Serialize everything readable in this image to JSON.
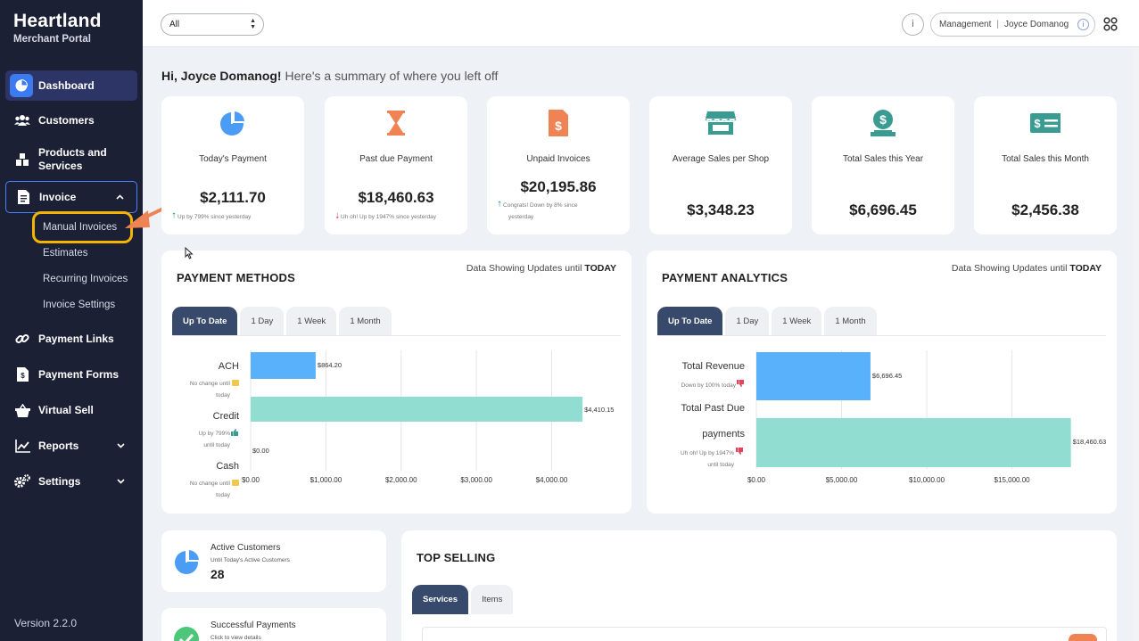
{
  "brand": {
    "name": "Heartland",
    "subtitle": "Merchant Portal"
  },
  "sidebar": {
    "items": [
      {
        "label": "Dashboard",
        "icon": "pie-chart-icon"
      },
      {
        "label": "Customers",
        "icon": "users-icon"
      },
      {
        "label": "Products and Services",
        "line1": "Products and",
        "line2": "Services",
        "icon": "boxes-icon"
      },
      {
        "label": "Invoice",
        "icon": "invoice-icon"
      },
      {
        "label": "Payment Links",
        "icon": "link-icon"
      },
      {
        "label": "Payment Forms",
        "icon": "form-icon"
      },
      {
        "label": "Virtual Sell",
        "icon": "basket-icon"
      },
      {
        "label": "Reports",
        "icon": "reports-icon"
      },
      {
        "label": "Settings",
        "icon": "gears-icon"
      }
    ],
    "invoice_sub": [
      "Manual Invoices",
      "Estimates",
      "Recurring Invoices",
      "Invoice Settings"
    ],
    "version": "Version 2.2.0"
  },
  "topbar": {
    "filter_value": "All",
    "account_role": "Management",
    "account_name": "Joyce Domanog"
  },
  "greeting": {
    "name": "Hi, Joyce Domanog!",
    "rest": " Here's a summary of where you left off"
  },
  "kpis": [
    {
      "title": "Today's Payment",
      "value": "$2,111.70",
      "note": "Up by 799% since yesterday",
      "icon": "pie-chart-icon",
      "color": "#4a9cf5"
    },
    {
      "title": "Past due Payment",
      "value": "$18,460.63",
      "note": "Uh oh! Up by 1947% since yesterday",
      "icon": "hourglass-icon",
      "color": "#ef8354"
    },
    {
      "title": "Unpaid Invoices",
      "value": "$20,195.86",
      "note1": "Congrats! Down by 8% since",
      "note2": "yesterday",
      "icon": "invoice-dollar-icon",
      "color": "#ef8354"
    },
    {
      "title": "Average Sales per Shop",
      "value": "$3,348.23",
      "icon": "shop-icon",
      "color": "#3a9b92"
    },
    {
      "title": "Total Sales this Year",
      "value": "$6,696.45",
      "icon": "dollar-hand-icon",
      "color": "#3a9b92"
    },
    {
      "title": "Total Sales this Month",
      "value": "$2,456.38",
      "icon": "dollar-card-icon",
      "color": "#3a9b92"
    }
  ],
  "payment_methods": {
    "title": "PAYMENT METHODS",
    "updates_prefix": "Data Showing Updates until",
    "updates_suffix": "TODAY",
    "tabs": [
      "Up To Date",
      "1 Day",
      "1 Week",
      "1 Month"
    ],
    "row_notes": [
      {
        "line1": "No change until",
        "line2": "today"
      },
      {
        "line1": "Up by 799%",
        "line2": "until today"
      },
      {
        "line1": "No change until",
        "line2": "today"
      }
    ]
  },
  "payment_analytics": {
    "title": "PAYMENT ANALYTICS",
    "updates_prefix": "Data Showing Updates until",
    "updates_suffix": "TODAY",
    "tabs": [
      "Up To Date",
      "1 Day",
      "1 Week",
      "1 Month"
    ],
    "row_notes": [
      {
        "line1": "Down by 100% today"
      },
      {
        "line1": "Uh oh! Up by 1947%",
        "line2": "until today"
      }
    ],
    "label_line2": "payments"
  },
  "bottom": {
    "active_customers": {
      "title": "Active Customers",
      "sub": "Until Today's Active Customers",
      "value": "28"
    },
    "successful_payments": {
      "title": "Successful Payments",
      "sub": "Click to view details"
    },
    "top_selling": {
      "title": "TOP SELLING",
      "tabs": [
        "Services",
        "Items"
      ]
    }
  },
  "chart_data": [
    {
      "type": "bar",
      "orientation": "horizontal",
      "categories": [
        "ACH",
        "Credit",
        "Cash"
      ],
      "values": [
        864.2,
        4410.15,
        0.0
      ],
      "value_labels": [
        "$864.20",
        "$4,410.15",
        "$0.00"
      ],
      "xlim": [
        0,
        4800
      ],
      "xticks": [
        0,
        1000,
        2000,
        3000,
        4000
      ],
      "xtick_labels": [
        "$0.00",
        "$1,000.00",
        "$2,000.00",
        "$3,000.00",
        "$4,000.00"
      ],
      "color": "#5ab1fb"
    },
    {
      "type": "bar",
      "orientation": "horizontal",
      "categories": [
        "Total Revenue",
        "Total Past Due payments"
      ],
      "values": [
        6696.45,
        18460.63
      ],
      "value_labels": [
        "$6,696.45",
        "$18,460.63"
      ],
      "xlim": [
        0,
        19000
      ],
      "xticks": [
        0,
        5000,
        10000,
        15000
      ],
      "xtick_labels": [
        "$0.00",
        "$5,000.00",
        "$10,000.00",
        "$15,000.00"
      ],
      "colors": [
        "#5ab1fb",
        "#92ddd1"
      ]
    }
  ]
}
